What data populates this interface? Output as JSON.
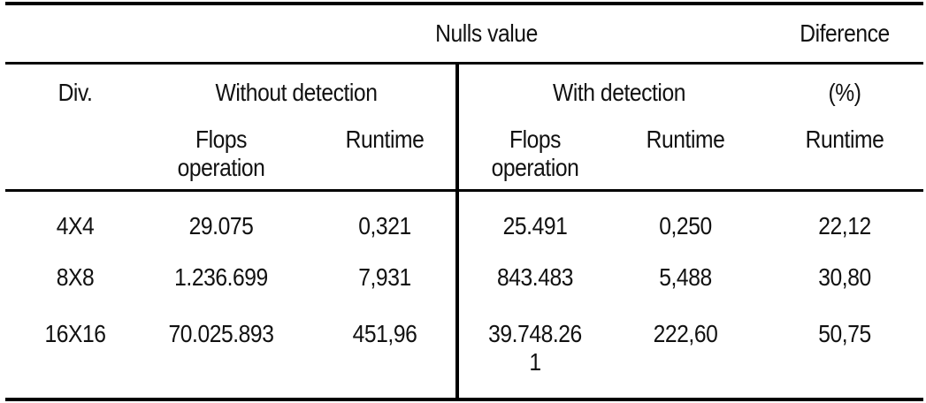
{
  "header": {
    "group_label": "Nulls value",
    "difference_label": "Diference",
    "div_label": "Div.",
    "without_detection": "Without detection",
    "with_detection": "With detection",
    "percent_label": "(%)",
    "sub_headers": {
      "flops_line1": "Flops",
      "flops_line2": "operation",
      "runtime": "Runtime"
    }
  },
  "rows": [
    {
      "div": "4X4",
      "flops_without": "29.075",
      "runtime_without": "0,321",
      "flops_with": "25.491",
      "runtime_with": "0,250",
      "difference": "22,12"
    },
    {
      "div": "8X8",
      "flops_without": "1.236.699",
      "runtime_without": "7,931",
      "flops_with": "843.483",
      "runtime_with": "5,488",
      "difference": "30,80"
    },
    {
      "div": "16X16",
      "flops_without": "70.025.893",
      "runtime_without": "451,96",
      "flops_with": "39.748.26",
      "flops_with_wrap": "1",
      "runtime_with": "222,60",
      "difference": "50,75"
    }
  ]
}
